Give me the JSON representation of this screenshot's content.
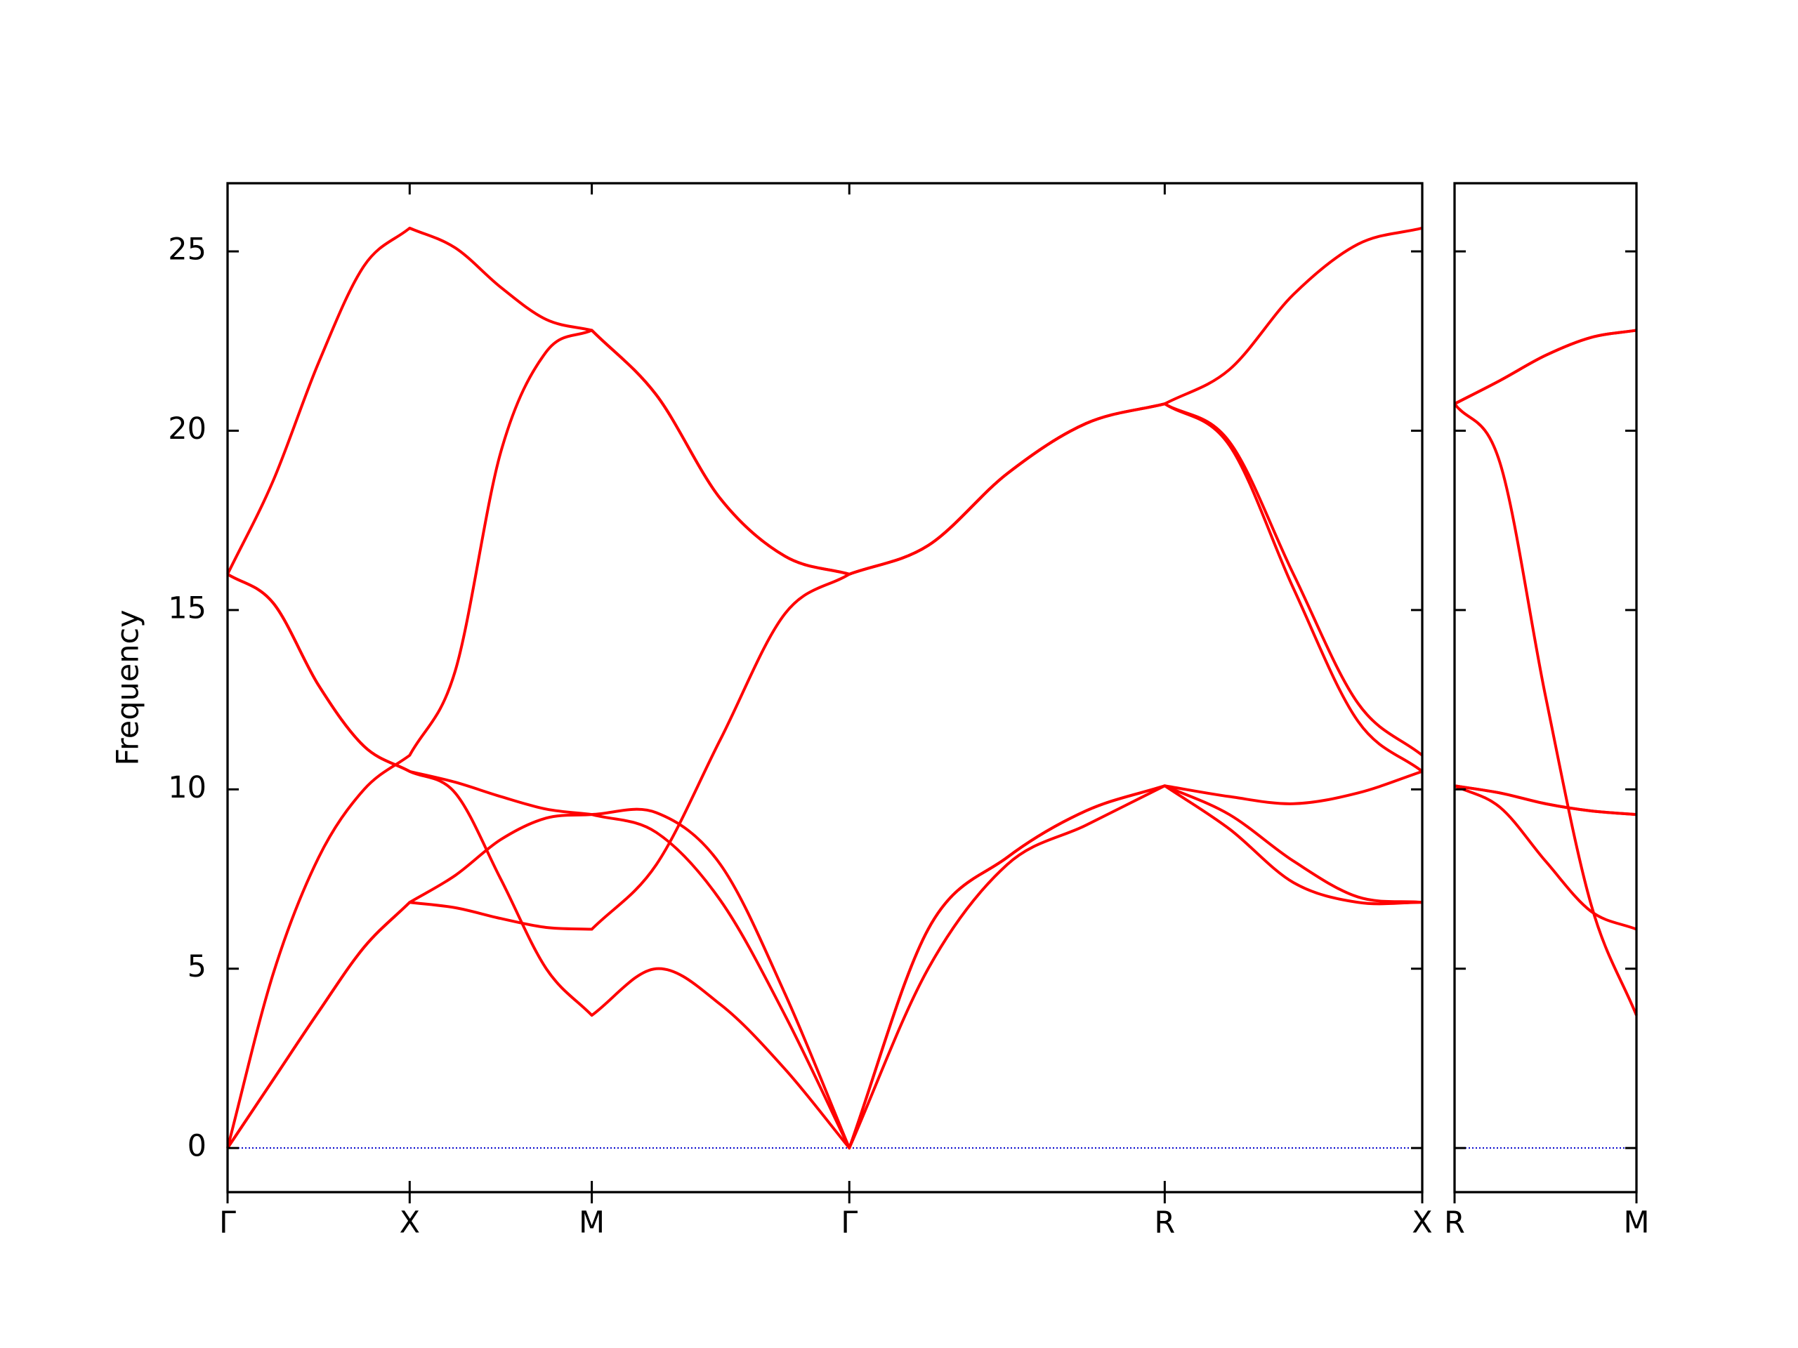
{
  "chart_data": [
    {
      "type": "line",
      "ylabel": "Frequency",
      "color": "#ff0000",
      "xlim": [
        0,
        6.56
      ],
      "ylim": [
        -1.23,
        26.9
      ],
      "xticks": [
        {
          "value": 0,
          "label": "Γ"
        },
        {
          "value": 1,
          "label": "X"
        },
        {
          "value": 2,
          "label": "M"
        },
        {
          "value": 3.414,
          "label": "Γ"
        },
        {
          "value": 5.146,
          "label": "R"
        },
        {
          "value": 6.56,
          "label": "X"
        }
      ],
      "yticks": [
        0,
        5,
        10,
        15,
        20,
        25
      ],
      "hline": {
        "value": 0,
        "color": "#0000cc"
      },
      "x": [
        0,
        0.25,
        0.5,
        0.75,
        1,
        1.25,
        1.5,
        1.75,
        2,
        2.354,
        2.707,
        3.061,
        3.414,
        3.847,
        4.28,
        4.713,
        5.146,
        5.5,
        5.853,
        6.207,
        6.56
      ],
      "series": [
        {
          "values": [
            0,
            1.9,
            3.8,
            5.6,
            6.85,
            6.7,
            6.4,
            6.15,
            6.1,
            7.9,
            11.4,
            14.9,
            16.0,
            16.8,
            18.8,
            20.2,
            20.75,
            21.7,
            23.8,
            25.2,
            25.65
          ]
        },
        {
          "values": [
            0,
            1.9,
            3.8,
            5.6,
            6.85,
            7.6,
            8.6,
            9.2,
            9.3,
            9.35,
            7.9,
            4.3,
            0,
            6.1,
            8.1,
            9.4,
            10.1,
            9.8,
            9.6,
            9.9,
            10.5
          ]
        },
        {
          "values": [
            0,
            4.85,
            8.1,
            10.0,
            10.95,
            13.3,
            19.4,
            22.2,
            22.8,
            21.0,
            18.1,
            16.5,
            16.0,
            16.8,
            18.8,
            20.2,
            20.75,
            19.7,
            16.0,
            12.4,
            10.95
          ]
        },
        {
          "values": [
            16,
            15.2,
            12.9,
            11.2,
            10.5,
            9.9,
            7.5,
            5.0,
            3.7,
            5.0,
            4.0,
            2.2,
            0,
            5.0,
            7.9,
            9.0,
            10.1,
            9.3,
            8.0,
            7.0,
            6.85
          ]
        },
        {
          "values": [
            16,
            15.2,
            12.9,
            11.2,
            10.5,
            10.2,
            9.8,
            9.45,
            9.3,
            8.8,
            6.9,
            3.7,
            0,
            6.1,
            8.1,
            9.4,
            10.1,
            8.9,
            7.4,
            6.85,
            6.85
          ]
        },
        {
          "values": [
            16,
            18.6,
            21.9,
            24.6,
            25.65,
            25.1,
            24.0,
            23.1,
            22.8,
            21.0,
            18.1,
            16.5,
            16.0,
            16.8,
            18.8,
            20.2,
            20.75,
            19.6,
            15.6,
            11.9,
            10.5
          ]
        }
      ]
    },
    {
      "type": "line",
      "color": "#ff0000",
      "xlim": [
        0,
        1
      ],
      "ylim": [
        -1.23,
        26.9
      ],
      "xticks": [
        {
          "value": 0,
          "label": "R"
        },
        {
          "value": 1,
          "label": "M"
        }
      ],
      "hline": {
        "value": 0,
        "color": "#0000cc"
      },
      "x": [
        0,
        0.25,
        0.5,
        0.75,
        1
      ],
      "series": [
        {
          "values": [
            20.75,
            21.4,
            22.1,
            22.6,
            22.8
          ]
        },
        {
          "values": [
            20.75,
            21.4,
            22.1,
            22.6,
            22.8
          ]
        },
        {
          "values": [
            20.75,
            19.1,
            12.6,
            6.8,
            3.7
          ]
        },
        {
          "values": [
            10.1,
            9.9,
            9.6,
            9.4,
            9.3
          ]
        },
        {
          "values": [
            10.1,
            9.9,
            9.6,
            9.4,
            9.3
          ]
        },
        {
          "values": [
            10.1,
            9.5,
            8.0,
            6.6,
            6.1
          ]
        }
      ]
    }
  ]
}
